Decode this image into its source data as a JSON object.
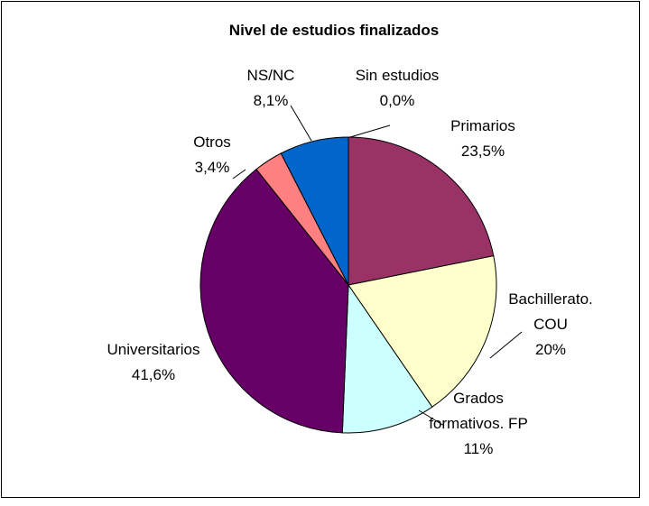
{
  "chart_data": {
    "type": "pie",
    "title": "Nivel de estudios finalizados",
    "categories": [
      "Sin estudios",
      "Primarios",
      "Bachillerato. COU",
      "Grados formativos. FP",
      "Universitarios",
      "Otros",
      "NS/NC"
    ],
    "values": [
      0,
      23.5,
      20,
      11,
      41.6,
      3.4,
      8.1
    ],
    "value_labels": [
      "0,0%",
      "23,5%",
      "20%",
      "11%",
      "41,6%",
      "3,4%",
      "8,1%"
    ],
    "colors": [
      "#ffffff",
      "#993366",
      "#ffffcc",
      "#ccffff",
      "#660066",
      "#ff8080",
      "#0066cc"
    ]
  }
}
